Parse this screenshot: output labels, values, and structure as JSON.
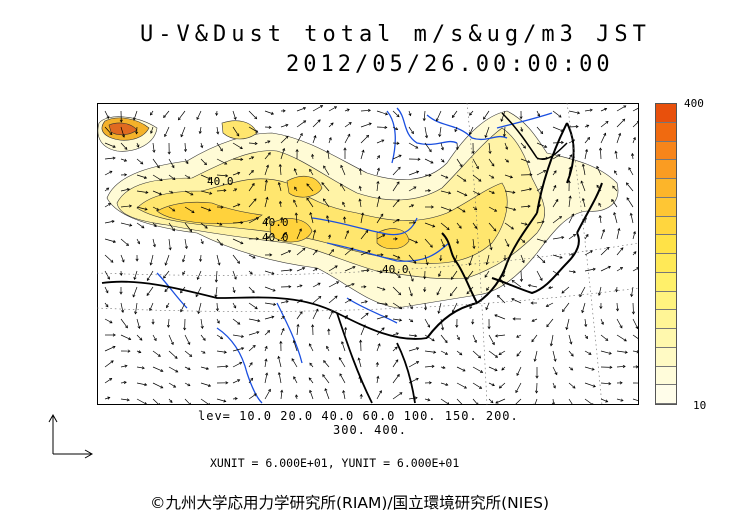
{
  "header": {
    "title": "U-V&Dust total m/s&ug/m3 JST",
    "datetime": "2012/05/26.00:00:00"
  },
  "colorbar": {
    "max_label": "400",
    "min_label": "10",
    "colors": [
      "#e8500c",
      "#f06a10",
      "#f7851a",
      "#fa9c22",
      "#fcb52a",
      "#fec634",
      "#ffd63e",
      "#ffe247",
      "#ffe957",
      "#fff06a",
      "#fff37f",
      "#fff596",
      "#fff8ad",
      "#fffac4",
      "#fffcda",
      "#fffdea"
    ]
  },
  "contour_labels": [
    "40.0",
    "40.0",
    "40.0",
    "40.0"
  ],
  "levels": {
    "line1": "lev= 10.0 20.0 40.0 60.0 100. 150. 200.",
    "line2": "300. 400."
  },
  "units_text": "XUNIT = 6.000E+01, YUNIT = 6.000E+01",
  "credit": "©九州大学応用力学研究所(RIAM)/国立環境研究所(NIES)",
  "map": {
    "land_color": "#ffffff",
    "border_color": "#000000",
    "river_color": "#1a4fe0",
    "dust_colors": [
      "#fffbd6",
      "#fff3a6",
      "#ffe66e",
      "#ffd23c",
      "#f4b22a",
      "#e06a20"
    ]
  }
}
